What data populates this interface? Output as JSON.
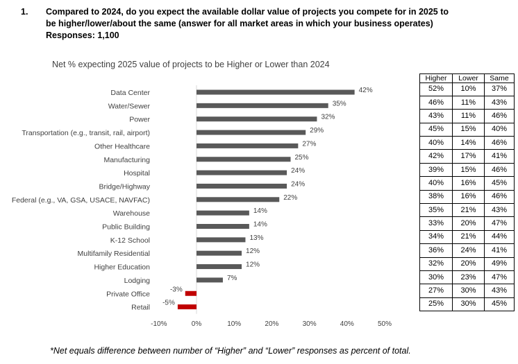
{
  "question": {
    "number": "1.",
    "line1": "Compared to 2024, do you expect the available dollar value of projects you compete for in 2025 to",
    "line2": "be higher/lower/about the same (answer for all market areas in which your business operates)",
    "line3": "Responses: 1,100"
  },
  "footnote": "*Net equals difference between number of “Higher” and “Lower” responses as percent of total.",
  "colors": {
    "positive": "#595959",
    "negative": "#c00000"
  },
  "chart_data": {
    "type": "bar",
    "orientation": "horizontal",
    "title": "Net % expecting 2025 value of projects to be Higher or Lower than 2024",
    "categories": [
      "Data Center",
      "Water/Sewer",
      "Power",
      "Transportation (e.g., transit, rail, airport)",
      "Other Healthcare",
      "Manufacturing",
      "Hospital",
      "Bridge/Highway",
      "Federal (e.g., VA, GSA, USACE, NAVFAC)",
      "Warehouse",
      "Public Building",
      "K-12 School",
      "Multifamily Residential",
      "Higher Education",
      "Lodging",
      "Private Office",
      "Retail"
    ],
    "values": [
      42,
      35,
      32,
      29,
      27,
      25,
      24,
      24,
      22,
      14,
      14,
      13,
      12,
      12,
      7,
      -3,
      -5
    ],
    "data_labels": [
      "42%",
      "35%",
      "32%",
      "29%",
      "27%",
      "25%",
      "24%",
      "24%",
      "22%",
      "14%",
      "14%",
      "13%",
      "12%",
      "12%",
      "7%",
      "-3%",
      "-5%"
    ],
    "xlim": [
      -10,
      50
    ],
    "xticks": [
      -10,
      0,
      10,
      20,
      30,
      40,
      50
    ],
    "xtick_labels": [
      "-10%",
      "0%",
      "10%",
      "20%",
      "30%",
      "40%",
      "50%"
    ],
    "grid": false,
    "table": {
      "columns": [
        "Higher",
        "Lower",
        "Same"
      ],
      "rows": [
        [
          "52%",
          "10%",
          "37%"
        ],
        [
          "46%",
          "11%",
          "43%"
        ],
        [
          "43%",
          "11%",
          "46%"
        ],
        [
          "45%",
          "15%",
          "40%"
        ],
        [
          "40%",
          "14%",
          "46%"
        ],
        [
          "42%",
          "17%",
          "41%"
        ],
        [
          "39%",
          "15%",
          "46%"
        ],
        [
          "40%",
          "16%",
          "45%"
        ],
        [
          "38%",
          "16%",
          "46%"
        ],
        [
          "35%",
          "21%",
          "43%"
        ],
        [
          "33%",
          "20%",
          "47%"
        ],
        [
          "34%",
          "21%",
          "44%"
        ],
        [
          "36%",
          "24%",
          "41%"
        ],
        [
          "32%",
          "20%",
          "49%"
        ],
        [
          "30%",
          "23%",
          "47%"
        ],
        [
          "27%",
          "30%",
          "43%"
        ],
        [
          "25%",
          "30%",
          "45%"
        ]
      ]
    }
  }
}
